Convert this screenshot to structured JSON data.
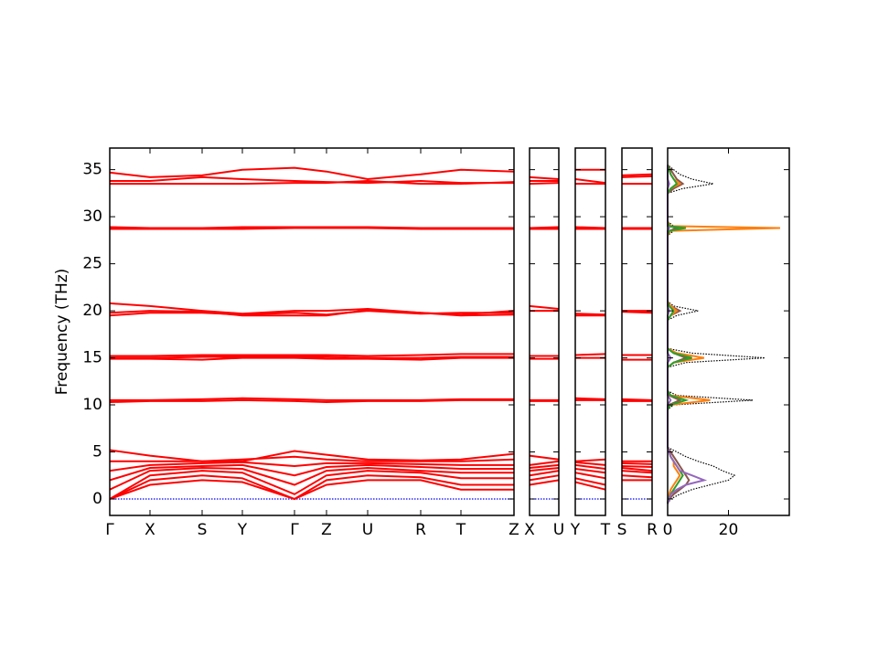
{
  "chart_data": [
    {
      "type": "bands",
      "ylabel": "Frequency (THz)",
      "ylim": [
        -1.75,
        37.3
      ],
      "yticks": [
        0,
        5,
        10,
        15,
        20,
        25,
        30,
        35
      ],
      "x": [
        0,
        0.44,
        1.01,
        1.45,
        2.02,
        2.37,
        2.82,
        3.4,
        3.84,
        4.42
      ],
      "xlim": [
        0,
        4.42
      ],
      "xticks": [
        {
          "value": 0,
          "label": "Γ"
        },
        {
          "value": 0.44,
          "label": "X"
        },
        {
          "value": 1.01,
          "label": "S"
        },
        {
          "value": 1.45,
          "label": "Y"
        },
        {
          "value": 2.02,
          "label": "Γ"
        },
        {
          "value": 2.37,
          "label": "Z"
        },
        {
          "value": 2.82,
          "label": "U"
        },
        {
          "value": 3.4,
          "label": "R"
        },
        {
          "value": 3.84,
          "label": "T"
        },
        {
          "value": 4.42,
          "label": "Z"
        }
      ],
      "series": [
        {
          "color": "#0000ff",
          "style": "dotted",
          "values": [
            0,
            0,
            0,
            0,
            0,
            0,
            0,
            0,
            0,
            0
          ]
        },
        {
          "color": "#ff0000",
          "values": [
            0,
            1.5,
            2.0,
            1.8,
            0,
            1.5,
            2.0,
            2.0,
            1.0,
            1.0
          ]
        },
        {
          "color": "#ff0000",
          "values": [
            0,
            2.0,
            2.5,
            2.2,
            0,
            2.0,
            2.5,
            2.3,
            1.5,
            1.5
          ]
        },
        {
          "color": "#ff0000",
          "values": [
            0,
            2.5,
            3.0,
            2.8,
            0.5,
            2.5,
            3.0,
            2.8,
            2.2,
            2.2
          ]
        },
        {
          "color": "#ff0000",
          "values": [
            1.0,
            3.0,
            3.3,
            3.2,
            1.5,
            3.0,
            3.3,
            3.0,
            2.8,
            2.8
          ]
        },
        {
          "color": "#ff0000",
          "values": [
            2.0,
            3.3,
            3.5,
            3.6,
            2.5,
            3.4,
            3.6,
            3.4,
            3.2,
            3.2
          ]
        },
        {
          "color": "#ff0000",
          "values": [
            3.0,
            3.6,
            3.8,
            3.9,
            3.5,
            3.8,
            3.8,
            3.7,
            3.6,
            3.6
          ]
        },
        {
          "color": "#ff0000",
          "values": [
            4.0,
            4.0,
            4.0,
            4.2,
            4.5,
            4.2,
            4.0,
            4.0,
            4.0,
            4.2
          ]
        },
        {
          "color": "#ff0000",
          "values": [
            5.2,
            4.6,
            4.0,
            4.0,
            5.1,
            4.7,
            4.2,
            4.1,
            4.2,
            4.8
          ]
        },
        {
          "color": "#ff0000",
          "values": [
            10.5,
            10.5,
            10.6,
            10.7,
            10.6,
            10.5,
            10.5,
            10.5,
            10.6,
            10.6
          ]
        },
        {
          "color": "#ff0000",
          "values": [
            10.3,
            10.4,
            10.4,
            10.5,
            10.4,
            10.3,
            10.4,
            10.4,
            10.5,
            10.5
          ]
        },
        {
          "color": "#ff0000",
          "values": [
            15.2,
            15.2,
            15.3,
            15.3,
            15.3,
            15.3,
            15.2,
            15.3,
            15.4,
            15.4
          ]
        },
        {
          "color": "#ff0000",
          "values": [
            15.0,
            15.0,
            15.1,
            15.1,
            15.1,
            15.1,
            15.0,
            15.0,
            15.1,
            15.1
          ]
        },
        {
          "color": "#ff0000",
          "values": [
            14.9,
            14.9,
            14.8,
            15.0,
            15.0,
            14.9,
            14.9,
            14.8,
            15.0,
            15.0
          ]
        },
        {
          "color": "#ff0000",
          "values": [
            20.8,
            20.5,
            20.0,
            19.7,
            20.0,
            20.0,
            20.2,
            19.8,
            19.6,
            20.0
          ]
        },
        {
          "color": "#ff0000",
          "values": [
            19.8,
            20.0,
            19.9,
            19.5,
            19.5,
            19.5,
            20.1,
            19.8,
            19.5,
            19.6
          ]
        },
        {
          "color": "#ff0000",
          "values": [
            19.5,
            19.8,
            19.8,
            19.6,
            19.8,
            19.6,
            20.0,
            19.7,
            19.8,
            19.8
          ]
        },
        {
          "color": "#ff0000",
          "values": [
            28.9,
            28.8,
            28.8,
            28.9,
            28.9,
            28.9,
            28.9,
            28.8,
            28.8,
            28.8
          ]
        },
        {
          "color": "#ff0000",
          "values": [
            28.7,
            28.7,
            28.7,
            28.7,
            28.8,
            28.8,
            28.8,
            28.7,
            28.7,
            28.7
          ]
        },
        {
          "color": "#ff0000",
          "values": [
            34.7,
            34.2,
            34.4,
            35.0,
            35.2,
            34.8,
            34.0,
            34.5,
            35.0,
            34.8
          ]
        },
        {
          "color": "#ff0000",
          "values": [
            33.8,
            33.8,
            34.2,
            34.0,
            33.8,
            33.7,
            33.6,
            33.8,
            33.6,
            33.6
          ]
        },
        {
          "color": "#ff0000",
          "values": [
            33.5,
            33.5,
            33.5,
            33.5,
            33.6,
            33.6,
            33.8,
            33.5,
            33.5,
            33.7
          ]
        }
      ]
    },
    {
      "type": "bands",
      "ylim": [
        -1.75,
        37.3
      ],
      "x": [
        0,
        1
      ],
      "xlim": [
        0,
        1
      ],
      "xticks": [
        {
          "value": 0,
          "label": "X"
        },
        {
          "value": 1,
          "label": "U"
        }
      ],
      "series": [
        {
          "color": "#0000ff",
          "style": "dotted",
          "values": [
            0,
            0
          ]
        },
        {
          "color": "#ff0000",
          "values": [
            1.5,
            2.0
          ]
        },
        {
          "color": "#ff0000",
          "values": [
            2.0,
            2.5
          ]
        },
        {
          "color": "#ff0000",
          "values": [
            2.5,
            3.0
          ]
        },
        {
          "color": "#ff0000",
          "values": [
            3.0,
            3.3
          ]
        },
        {
          "color": "#ff0000",
          "values": [
            3.3,
            3.6
          ]
        },
        {
          "color": "#ff0000",
          "values": [
            3.6,
            4.0
          ]
        },
        {
          "color": "#ff0000",
          "values": [
            4.6,
            4.2
          ]
        },
        {
          "color": "#ff0000",
          "values": [
            10.5,
            10.5
          ]
        },
        {
          "color": "#ff0000",
          "values": [
            10.4,
            10.4
          ]
        },
        {
          "color": "#ff0000",
          "values": [
            15.2,
            15.2
          ]
        },
        {
          "color": "#ff0000",
          "values": [
            14.9,
            14.9
          ]
        },
        {
          "color": "#ff0000",
          "values": [
            20.5,
            20.2
          ]
        },
        {
          "color": "#ff0000",
          "values": [
            20.0,
            20.0
          ]
        },
        {
          "color": "#ff0000",
          "values": [
            28.8,
            28.9
          ]
        },
        {
          "color": "#ff0000",
          "values": [
            28.7,
            28.7
          ]
        },
        {
          "color": "#ff0000",
          "values": [
            34.2,
            34.0
          ]
        },
        {
          "color": "#ff0000",
          "values": [
            33.8,
            33.8
          ]
        },
        {
          "color": "#ff0000",
          "values": [
            33.5,
            33.6
          ]
        }
      ]
    },
    {
      "type": "bands",
      "ylim": [
        -1.75,
        37.3
      ],
      "x": [
        0,
        1
      ],
      "xlim": [
        0,
        1
      ],
      "xticks": [
        {
          "value": 0,
          "label": "Y"
        },
        {
          "value": 1,
          "label": "T"
        }
      ],
      "series": [
        {
          "color": "#0000ff",
          "style": "dotted",
          "values": [
            0,
            0
          ]
        },
        {
          "color": "#ff0000",
          "values": [
            1.8,
            1.0
          ]
        },
        {
          "color": "#ff0000",
          "values": [
            2.2,
            1.5
          ]
        },
        {
          "color": "#ff0000",
          "values": [
            2.8,
            2.2
          ]
        },
        {
          "color": "#ff0000",
          "values": [
            3.2,
            2.8
          ]
        },
        {
          "color": "#ff0000",
          "values": [
            3.6,
            3.2
          ]
        },
        {
          "color": "#ff0000",
          "values": [
            3.9,
            3.6
          ]
        },
        {
          "color": "#ff0000",
          "values": [
            4.0,
            4.2
          ]
        },
        {
          "color": "#ff0000",
          "values": [
            10.7,
            10.6
          ]
        },
        {
          "color": "#ff0000",
          "values": [
            10.5,
            10.5
          ]
        },
        {
          "color": "#ff0000",
          "values": [
            15.3,
            15.4
          ]
        },
        {
          "color": "#ff0000",
          "values": [
            15.0,
            15.0
          ]
        },
        {
          "color": "#ff0000",
          "values": [
            19.7,
            19.6
          ]
        },
        {
          "color": "#ff0000",
          "values": [
            19.5,
            19.5
          ]
        },
        {
          "color": "#ff0000",
          "values": [
            28.9,
            28.8
          ]
        },
        {
          "color": "#ff0000",
          "values": [
            28.7,
            28.7
          ]
        },
        {
          "color": "#ff0000",
          "values": [
            35.0,
            35.0
          ]
        },
        {
          "color": "#ff0000",
          "values": [
            34.0,
            33.6
          ]
        },
        {
          "color": "#ff0000",
          "values": [
            33.5,
            33.5
          ]
        }
      ]
    },
    {
      "type": "bands",
      "ylim": [
        -1.75,
        37.3
      ],
      "x": [
        0,
        1
      ],
      "xlim": [
        0,
        1
      ],
      "xticks": [
        {
          "value": 0,
          "label": "S"
        },
        {
          "value": 1,
          "label": "R"
        }
      ],
      "series": [
        {
          "color": "#0000ff",
          "style": "dotted",
          "values": [
            0,
            0
          ]
        },
        {
          "color": "#ff0000",
          "values": [
            2.0,
            2.0
          ]
        },
        {
          "color": "#ff0000",
          "values": [
            2.5,
            2.3
          ]
        },
        {
          "color": "#ff0000",
          "values": [
            3.0,
            2.8
          ]
        },
        {
          "color": "#ff0000",
          "values": [
            3.3,
            3.0
          ]
        },
        {
          "color": "#ff0000",
          "values": [
            3.5,
            3.4
          ]
        },
        {
          "color": "#ff0000",
          "values": [
            3.8,
            3.7
          ]
        },
        {
          "color": "#ff0000",
          "values": [
            4.0,
            4.0
          ]
        },
        {
          "color": "#ff0000",
          "values": [
            10.6,
            10.5
          ]
        },
        {
          "color": "#ff0000",
          "values": [
            10.4,
            10.4
          ]
        },
        {
          "color": "#ff0000",
          "values": [
            15.3,
            15.3
          ]
        },
        {
          "color": "#ff0000",
          "values": [
            14.8,
            14.8
          ]
        },
        {
          "color": "#ff0000",
          "values": [
            20.0,
            20.0
          ]
        },
        {
          "color": "#ff0000",
          "values": [
            19.9,
            19.8
          ]
        },
        {
          "color": "#ff0000",
          "values": [
            28.8,
            28.8
          ]
        },
        {
          "color": "#ff0000",
          "values": [
            28.7,
            28.7
          ]
        },
        {
          "color": "#ff0000",
          "values": [
            34.4,
            34.5
          ]
        },
        {
          "color": "#ff0000",
          "values": [
            34.2,
            34.3
          ]
        },
        {
          "color": "#ff0000",
          "values": [
            33.5,
            33.5
          ]
        }
      ]
    },
    {
      "type": "dos",
      "ylim": [
        -1.75,
        37.3
      ],
      "xlim": [
        0,
        40
      ],
      "xticks": [
        0,
        20
      ],
      "y": [
        -0.5,
        0,
        0.5,
        1,
        1.5,
        2,
        2.5,
        3,
        3.5,
        4,
        4.5,
        5,
        5.5,
        9.5,
        10,
        10.5,
        11,
        11.5,
        14,
        14.5,
        15,
        15.5,
        16,
        19,
        19.5,
        20,
        20.5,
        21,
        28,
        28.5,
        28.8,
        29,
        29.5,
        32.5,
        33,
        33.5,
        34,
        34.5,
        35,
        35.5
      ],
      "series": [
        {
          "color": "#000000",
          "style": "dotted",
          "values": [
            0,
            1,
            4,
            8,
            14,
            20,
            22,
            18,
            15,
            10,
            6,
            3,
            0,
            0,
            2,
            28,
            3,
            0,
            0,
            6,
            32,
            8,
            0,
            0,
            3,
            10,
            2,
            0,
            0,
            2,
            37,
            2,
            0,
            0,
            5,
            15,
            8,
            4,
            2,
            0
          ]
        },
        {
          "color": "#8c564b",
          "values": [
            0,
            0.5,
            2,
            4,
            6,
            7,
            6,
            5,
            4,
            3,
            2,
            1,
            0,
            0,
            0.5,
            4,
            0.5,
            0,
            0,
            2,
            6,
            2,
            0,
            0,
            1,
            4,
            1,
            0,
            0,
            0.5,
            3,
            0.5,
            0,
            0,
            2,
            5,
            3,
            2,
            1,
            0
          ]
        },
        {
          "color": "#ff7f0e",
          "values": [
            0,
            0.2,
            0.5,
            1,
            2,
            3,
            4,
            3,
            2,
            2,
            1,
            0.5,
            0,
            0,
            1,
            14,
            1,
            0,
            0,
            2,
            12,
            3,
            0,
            0,
            1,
            3,
            1,
            0,
            0,
            1,
            37,
            1,
            0,
            0,
            1,
            4,
            2,
            1,
            0.5,
            0
          ]
        },
        {
          "color": "#2ca02c",
          "values": [
            0,
            0.2,
            1,
            2,
            3,
            4,
            5,
            4,
            3,
            2,
            1,
            0.5,
            0,
            0,
            1,
            6,
            1,
            0,
            0,
            2,
            8,
            2,
            0,
            0,
            1,
            2,
            0.5,
            0,
            0,
            0.5,
            6,
            0.5,
            0,
            0,
            1,
            3,
            2,
            1,
            0.5,
            0
          ]
        },
        {
          "color": "#9467bd",
          "values": [
            0,
            0.5,
            1,
            3,
            6,
            12,
            8,
            4,
            3,
            2,
            1,
            0.5,
            0,
            0,
            0,
            1,
            0,
            0,
            0,
            0,
            1,
            0,
            0,
            0,
            0,
            0.5,
            0,
            0,
            0,
            0,
            0.5,
            0,
            0,
            0,
            0,
            0.5,
            0,
            0,
            0,
            0
          ]
        }
      ]
    }
  ]
}
